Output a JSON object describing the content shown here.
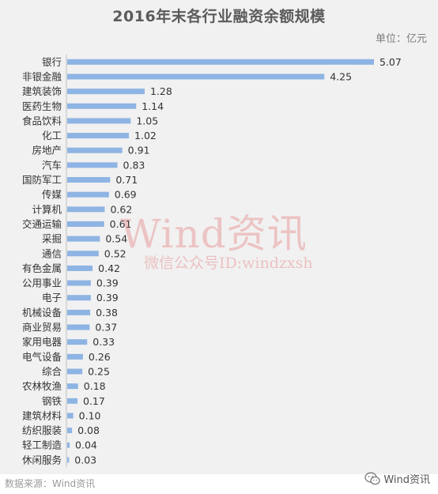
{
  "chart_data": {
    "type": "bar",
    "orientation": "horizontal",
    "title": "2016年末各行业融资余额规模",
    "unit": "单位：亿元",
    "categories": [
      "银行",
      "非银金融",
      "建筑装饰",
      "医药生物",
      "食品饮料",
      "化工",
      "房地产",
      "汽车",
      "国防军工",
      "传媒",
      "计算机",
      "交通运输",
      "采掘",
      "通信",
      "有色金属",
      "公用事业",
      "电子",
      "机械设备",
      "商业贸易",
      "家用电器",
      "电气设备",
      "综合",
      "农林牧渔",
      "钢铁",
      "建筑材料",
      "纺织服装",
      "轻工制造",
      "休闲服务"
    ],
    "values": [
      5.07,
      4.25,
      1.28,
      1.14,
      1.05,
      1.02,
      0.91,
      0.83,
      0.71,
      0.69,
      0.62,
      0.61,
      0.54,
      0.52,
      0.42,
      0.39,
      0.39,
      0.38,
      0.37,
      0.33,
      0.26,
      0.25,
      0.18,
      0.17,
      0.1,
      0.08,
      0.04,
      0.03
    ],
    "value_labels": [
      "5.07",
      "4.25",
      "1.28",
      "1.14",
      "1.05",
      "1.02",
      "0.91",
      "0.83",
      "0.71",
      "0.69",
      "0.62",
      "0.61",
      "0.54",
      "0.52",
      "0.42",
      "0.39",
      "0.39",
      "0.38",
      "0.37",
      "0.33",
      "0.26",
      "0.25",
      "0.18",
      "0.17",
      "0.10",
      "0.08",
      "0.04",
      "0.03"
    ],
    "xlim": [
      0,
      5.07
    ],
    "grid": false,
    "legend": "none",
    "bar_color": "#8eb4e3"
  },
  "watermark": {
    "brand": "Wind资讯",
    "sub": "微信公众号ID:windzxsh"
  },
  "footer": {
    "source": "数据来源：Wind资讯",
    "wechat_label": "Wind资讯",
    "wechat_icon": "wechat-icon"
  }
}
